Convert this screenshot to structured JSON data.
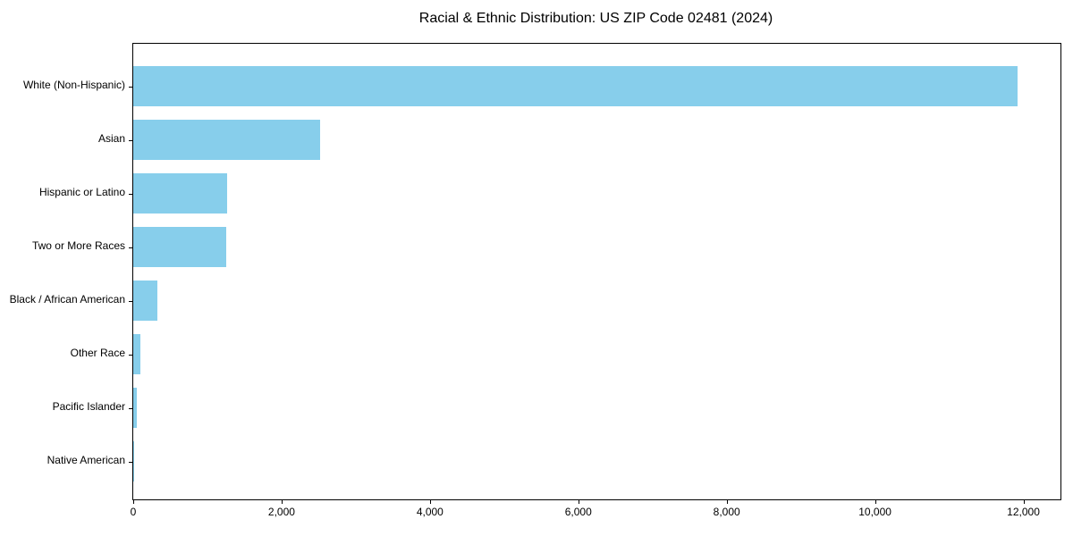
{
  "chart_data": {
    "type": "bar",
    "orientation": "horizontal",
    "title": "Racial & Ethnic Distribution: US ZIP Code 02481 (2024)",
    "categories": [
      "White (Non-Hispanic)",
      "Asian",
      "Hispanic or Latino",
      "Two or More Races",
      "Black / African American",
      "Other Race",
      "Pacific Islander",
      "Native American"
    ],
    "values": [
      11920,
      2520,
      1265,
      1250,
      320,
      100,
      48,
      8
    ],
    "xlabel": "",
    "ylabel": "",
    "xlim": [
      0,
      12500
    ],
    "xticks": [
      0,
      2000,
      4000,
      6000,
      8000,
      10000,
      12000
    ],
    "xtick_labels": [
      "0",
      "2,000",
      "4,000",
      "6,000",
      "8,000",
      "10,000",
      "12,000"
    ],
    "bar_color": "#87CEEB",
    "background_color": "#ffffff",
    "spine_color": "#000000",
    "grid": false,
    "legend": null
  }
}
